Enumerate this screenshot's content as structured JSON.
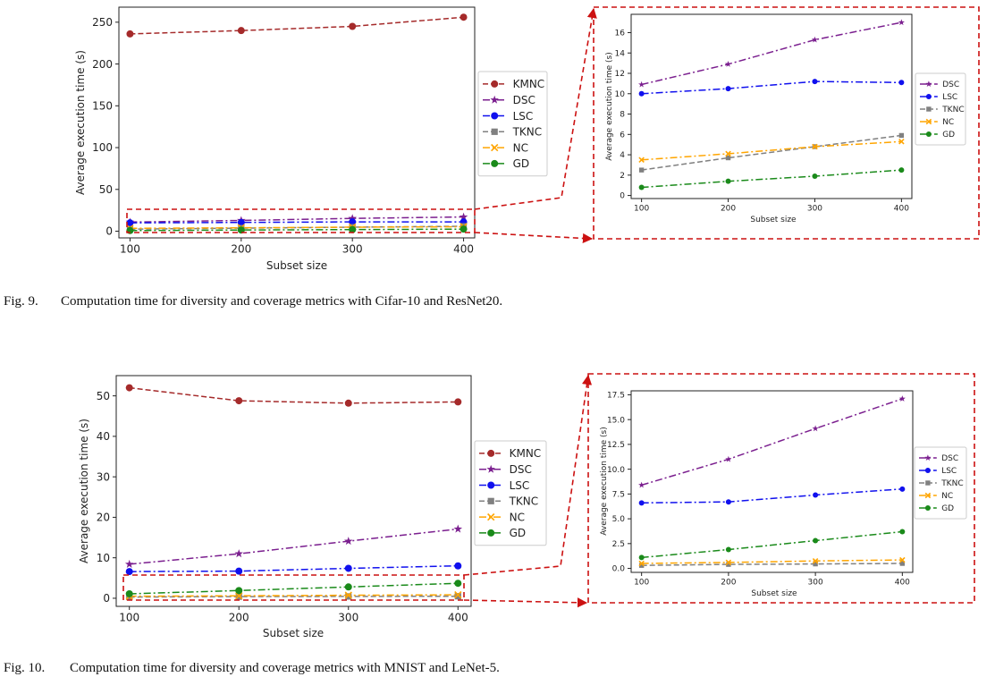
{
  "figures": [
    {
      "caption_number": "Fig. 9.",
      "caption_text": "Computation time for diversity and coverage metrics with Cifar-10 and ResNet20."
    },
    {
      "caption_number": "Fig. 10.",
      "caption_text": "Computation time for diversity and coverage metrics with MNIST and LeNet-5."
    }
  ],
  "colors": {
    "KMNC": "#a52a2a",
    "DSC": "#7b1f8f",
    "LSC": "#1010ee",
    "TKNC": "#808080",
    "NC": "#ffa500",
    "GD": "#1a8a1a",
    "zoom_box": "#cc1111"
  },
  "chart_data": [
    {
      "id": "fig9-main",
      "type": "line",
      "x": [
        100,
        200,
        300,
        400
      ],
      "xlabel": "Subset size",
      "ylabel": "Average execution time (s)",
      "xticks": [
        "100",
        "200",
        "300",
        "400"
      ],
      "yticks": [
        0,
        50,
        100,
        150,
        200,
        250
      ],
      "ylim": [
        -8,
        268
      ],
      "xlim": [
        90,
        410
      ],
      "legend": "right-outside",
      "grid": false,
      "series": [
        {
          "name": "KMNC",
          "values": [
            236,
            240,
            245,
            256
          ]
        },
        {
          "name": "DSC",
          "values": [
            10.9,
            12.9,
            15.3,
            17
          ]
        },
        {
          "name": "LSC",
          "values": [
            10,
            10.5,
            11.2,
            11.1
          ]
        },
        {
          "name": "TKNC",
          "values": [
            2.5,
            3.7,
            4.8,
            5.9
          ]
        },
        {
          "name": "NC",
          "values": [
            3.5,
            4.1,
            4.8,
            5.3
          ]
        },
        {
          "name": "GD",
          "values": [
            0.8,
            1.4,
            1.9,
            2.5
          ]
        }
      ]
    },
    {
      "id": "fig9-zoom",
      "type": "line",
      "x": [
        100,
        200,
        300,
        400
      ],
      "xlabel": "Subset size",
      "ylabel": "Average execution time (s)",
      "xticks": [
        "100",
        "200",
        "300",
        "400"
      ],
      "yticks": [
        0,
        2,
        4,
        6,
        8,
        10,
        12,
        14,
        16
      ],
      "ylim": [
        -0.3,
        17.8
      ],
      "xlim": [
        88,
        412
      ],
      "legend": "right-outside",
      "grid": false,
      "series": [
        {
          "name": "DSC",
          "values": [
            10.9,
            12.9,
            15.3,
            17
          ]
        },
        {
          "name": "LSC",
          "values": [
            10,
            10.5,
            11.2,
            11.1
          ]
        },
        {
          "name": "TKNC",
          "values": [
            2.5,
            3.7,
            4.8,
            5.9
          ]
        },
        {
          "name": "NC",
          "values": [
            3.5,
            4.1,
            4.8,
            5.3
          ]
        },
        {
          "name": "GD",
          "values": [
            0.8,
            1.4,
            1.9,
            2.5
          ]
        }
      ]
    },
    {
      "id": "fig10-main",
      "type": "line",
      "x": [
        100,
        200,
        300,
        400
      ],
      "xlabel": "Subset size",
      "ylabel": "Average execution time (s)",
      "xticks": [
        "100",
        "200",
        "300",
        "400"
      ],
      "yticks": [
        0,
        10,
        20,
        30,
        40,
        50
      ],
      "ylim": [
        -2,
        55
      ],
      "xlim": [
        88,
        412
      ],
      "legend": "right-outside",
      "grid": false,
      "series": [
        {
          "name": "KMNC",
          "values": [
            52,
            48.8,
            48.2,
            48.5
          ]
        },
        {
          "name": "DSC",
          "values": [
            8.4,
            11,
            14.1,
            17.1
          ]
        },
        {
          "name": "LSC",
          "values": [
            6.6,
            6.7,
            7.4,
            8
          ]
        },
        {
          "name": "TKNC",
          "values": [
            0.3,
            0.4,
            0.45,
            0.5
          ]
        },
        {
          "name": "NC",
          "values": [
            0.5,
            0.6,
            0.75,
            0.85
          ]
        },
        {
          "name": "GD",
          "values": [
            1.1,
            1.9,
            2.8,
            3.7
          ]
        }
      ]
    },
    {
      "id": "fig10-zoom",
      "type": "line",
      "x": [
        100,
        200,
        300,
        400
      ],
      "xlabel": "Subset size",
      "ylabel": "Average execution time (s)",
      "xticks": [
        "100",
        "200",
        "300",
        "400"
      ],
      "yticks": [
        "0.0",
        "2.5",
        "5.0",
        "7.5",
        "10.0",
        "12.5",
        "15.0",
        "17.5"
      ],
      "ylim": [
        -0.4,
        17.9
      ],
      "xlim": [
        88,
        412
      ],
      "legend": "right-outside",
      "grid": false,
      "series": [
        {
          "name": "DSC",
          "values": [
            8.4,
            11,
            14.1,
            17.1
          ]
        },
        {
          "name": "LSC",
          "values": [
            6.6,
            6.7,
            7.4,
            8
          ]
        },
        {
          "name": "TKNC",
          "values": [
            0.3,
            0.4,
            0.45,
            0.5
          ]
        },
        {
          "name": "NC",
          "values": [
            0.5,
            0.6,
            0.75,
            0.85
          ]
        },
        {
          "name": "GD",
          "values": [
            1.1,
            1.9,
            2.8,
            3.7
          ]
        }
      ]
    }
  ]
}
